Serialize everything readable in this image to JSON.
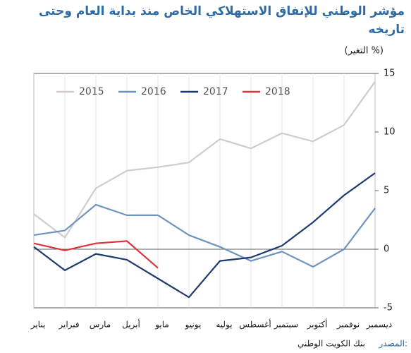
{
  "chart_data": {
    "type": "line",
    "title": [
      "مؤشر الوطني للإنفاق الاستهلاكي الخاص منذ بداية العام وحتى",
      "تاريخه"
    ],
    "y_label": "(التغير %)",
    "categories": [
      "يناير",
      "فبراير",
      "مارس",
      "أبريل",
      "مايو",
      "يونيو",
      "يوليه",
      "أغسطس",
      "سبتمبر",
      "أكتوبر",
      "نوفمبر",
      "ديسمبر"
    ],
    "series": [
      {
        "name": "2015",
        "color": "#d3cbcb",
        "values": [
          3.0,
          1.0,
          5.2,
          6.7,
          7.0,
          7.4,
          9.4,
          8.6,
          9.9,
          9.2,
          10.6,
          14.3
        ]
      },
      {
        "name": "2016",
        "color": "#6e93bf",
        "values": [
          1.2,
          1.6,
          3.8,
          2.9,
          2.9,
          1.2,
          0.2,
          -1.0,
          -0.2,
          -1.5,
          0.0,
          3.5
        ]
      },
      {
        "name": "2017",
        "color": "#1f3a6e",
        "values": [
          0.2,
          -1.8,
          -0.4,
          -0.9,
          -2.5,
          -4.1,
          -1.0,
          -0.7,
          0.3,
          2.3,
          4.6,
          6.5
        ]
      },
      {
        "name": "2018",
        "color": "#d9363e",
        "values": [
          0.5,
          -0.1,
          0.5,
          0.7,
          -1.6,
          null,
          null,
          null,
          null,
          null,
          null,
          null
        ]
      }
    ],
    "ylim": [
      -5,
      15
    ],
    "yticks": [
      -5,
      0,
      5,
      10,
      15
    ],
    "legend": "top-left",
    "source_label": "المصدر:",
    "source": "بنك الكويت الوطني"
  }
}
